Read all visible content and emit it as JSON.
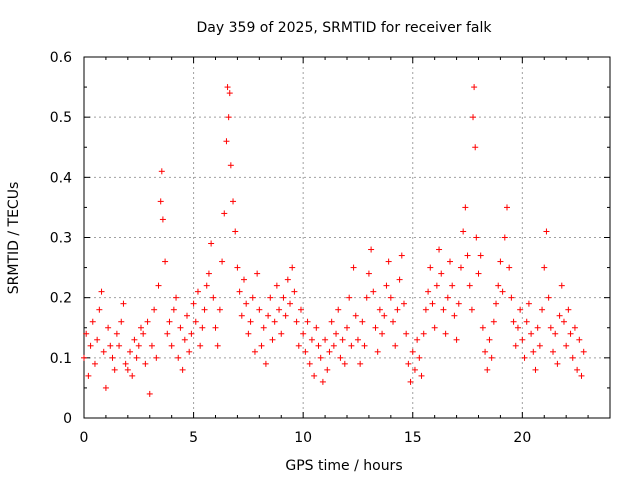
{
  "chart_data": {
    "type": "scatter",
    "title": "Day 359 of 2025, SRMTID for receiver falk",
    "xlabel": "GPS time / hours",
    "ylabel": "SRMTID / TECUs",
    "xlim": [
      0,
      24
    ],
    "ylim": [
      0,
      0.6
    ],
    "xticks": [
      "0",
      "5",
      "10",
      "15",
      "20"
    ],
    "xtick_values": [
      0,
      5,
      10,
      15,
      20
    ],
    "yticks": [
      "0",
      "0.1",
      "0.2",
      "0.3",
      "0.4",
      "0.5",
      "0.6"
    ],
    "ytick_values": [
      0,
      0.1,
      0.2,
      0.3,
      0.4,
      0.5,
      0.6
    ],
    "grid": true,
    "marker": "+",
    "color": "#ff0000",
    "series": [
      {
        "name": "SRMTID",
        "points": [
          [
            0.0,
            0.1
          ],
          [
            0.1,
            0.14
          ],
          [
            0.2,
            0.07
          ],
          [
            0.3,
            0.12
          ],
          [
            0.4,
            0.16
          ],
          [
            0.5,
            0.09
          ],
          [
            0.6,
            0.13
          ],
          [
            0.7,
            0.18
          ],
          [
            0.8,
            0.21
          ],
          [
            0.9,
            0.11
          ],
          [
            1.0,
            0.05
          ],
          [
            1.1,
            0.15
          ],
          [
            1.2,
            0.12
          ],
          [
            1.3,
            0.1
          ],
          [
            1.4,
            0.08
          ],
          [
            1.5,
            0.14
          ],
          [
            1.6,
            0.12
          ],
          [
            1.7,
            0.16
          ],
          [
            1.8,
            0.19
          ],
          [
            1.9,
            0.09
          ],
          [
            2.0,
            0.08
          ],
          [
            2.1,
            0.11
          ],
          [
            2.2,
            0.07
          ],
          [
            2.3,
            0.13
          ],
          [
            2.4,
            0.1
          ],
          [
            2.5,
            0.12
          ],
          [
            2.6,
            0.15
          ],
          [
            2.7,
            0.14
          ],
          [
            2.8,
            0.09
          ],
          [
            2.9,
            0.16
          ],
          [
            3.0,
            0.04
          ],
          [
            3.1,
            0.12
          ],
          [
            3.2,
            0.18
          ],
          [
            3.3,
            0.1
          ],
          [
            3.4,
            0.22
          ],
          [
            3.5,
            0.36
          ],
          [
            3.55,
            0.41
          ],
          [
            3.6,
            0.33
          ],
          [
            3.7,
            0.26
          ],
          [
            3.8,
            0.14
          ],
          [
            3.9,
            0.16
          ],
          [
            4.0,
            0.12
          ],
          [
            4.1,
            0.18
          ],
          [
            4.2,
            0.2
          ],
          [
            4.3,
            0.1
          ],
          [
            4.4,
            0.15
          ],
          [
            4.5,
            0.08
          ],
          [
            4.6,
            0.13
          ],
          [
            4.7,
            0.17
          ],
          [
            4.8,
            0.11
          ],
          [
            4.9,
            0.14
          ],
          [
            5.0,
            0.19
          ],
          [
            5.1,
            0.16
          ],
          [
            5.2,
            0.21
          ],
          [
            5.3,
            0.12
          ],
          [
            5.4,
            0.15
          ],
          [
            5.5,
            0.18
          ],
          [
            5.6,
            0.22
          ],
          [
            5.7,
            0.24
          ],
          [
            5.8,
            0.29
          ],
          [
            5.9,
            0.2
          ],
          [
            6.0,
            0.15
          ],
          [
            6.1,
            0.12
          ],
          [
            6.2,
            0.18
          ],
          [
            6.3,
            0.26
          ],
          [
            6.4,
            0.34
          ],
          [
            6.5,
            0.46
          ],
          [
            6.55,
            0.55
          ],
          [
            6.6,
            0.5
          ],
          [
            6.65,
            0.54
          ],
          [
            6.7,
            0.42
          ],
          [
            6.8,
            0.36
          ],
          [
            6.9,
            0.31
          ],
          [
            7.0,
            0.25
          ],
          [
            7.1,
            0.21
          ],
          [
            7.2,
            0.17
          ],
          [
            7.3,
            0.23
          ],
          [
            7.4,
            0.19
          ],
          [
            7.5,
            0.14
          ],
          [
            7.6,
            0.16
          ],
          [
            7.7,
            0.2
          ],
          [
            7.8,
            0.11
          ],
          [
            7.9,
            0.24
          ],
          [
            8.0,
            0.18
          ],
          [
            8.1,
            0.12
          ],
          [
            8.2,
            0.15
          ],
          [
            8.3,
            0.09
          ],
          [
            8.4,
            0.17
          ],
          [
            8.5,
            0.2
          ],
          [
            8.6,
            0.13
          ],
          [
            8.7,
            0.16
          ],
          [
            8.8,
            0.22
          ],
          [
            8.9,
            0.18
          ],
          [
            9.0,
            0.14
          ],
          [
            9.1,
            0.2
          ],
          [
            9.2,
            0.17
          ],
          [
            9.3,
            0.23
          ],
          [
            9.4,
            0.19
          ],
          [
            9.5,
            0.25
          ],
          [
            9.6,
            0.21
          ],
          [
            9.7,
            0.16
          ],
          [
            9.8,
            0.12
          ],
          [
            9.9,
            0.18
          ],
          [
            10.0,
            0.14
          ],
          [
            10.1,
            0.11
          ],
          [
            10.2,
            0.16
          ],
          [
            10.3,
            0.09
          ],
          [
            10.4,
            0.13
          ],
          [
            10.5,
            0.07
          ],
          [
            10.6,
            0.15
          ],
          [
            10.7,
            0.12
          ],
          [
            10.8,
            0.1
          ],
          [
            10.9,
            0.06
          ],
          [
            11.0,
            0.13
          ],
          [
            11.1,
            0.08
          ],
          [
            11.2,
            0.11
          ],
          [
            11.3,
            0.16
          ],
          [
            11.4,
            0.12
          ],
          [
            11.5,
            0.14
          ],
          [
            11.6,
            0.18
          ],
          [
            11.7,
            0.1
          ],
          [
            11.8,
            0.13
          ],
          [
            11.9,
            0.09
          ],
          [
            12.0,
            0.15
          ],
          [
            12.1,
            0.2
          ],
          [
            12.2,
            0.12
          ],
          [
            12.3,
            0.25
          ],
          [
            12.4,
            0.17
          ],
          [
            12.5,
            0.13
          ],
          [
            12.6,
            0.09
          ],
          [
            12.7,
            0.16
          ],
          [
            12.8,
            0.12
          ],
          [
            12.9,
            0.2
          ],
          [
            13.0,
            0.24
          ],
          [
            13.1,
            0.28
          ],
          [
            13.2,
            0.21
          ],
          [
            13.3,
            0.15
          ],
          [
            13.4,
            0.11
          ],
          [
            13.5,
            0.18
          ],
          [
            13.6,
            0.14
          ],
          [
            13.7,
            0.17
          ],
          [
            13.8,
            0.22
          ],
          [
            13.9,
            0.26
          ],
          [
            14.0,
            0.2
          ],
          [
            14.1,
            0.16
          ],
          [
            14.2,
            0.12
          ],
          [
            14.3,
            0.18
          ],
          [
            14.4,
            0.23
          ],
          [
            14.5,
            0.27
          ],
          [
            14.6,
            0.19
          ],
          [
            14.7,
            0.14
          ],
          [
            14.8,
            0.09
          ],
          [
            14.9,
            0.06
          ],
          [
            15.0,
            0.11
          ],
          [
            15.1,
            0.08
          ],
          [
            15.2,
            0.13
          ],
          [
            15.3,
            0.1
          ],
          [
            15.4,
            0.07
          ],
          [
            15.5,
            0.14
          ],
          [
            15.6,
            0.18
          ],
          [
            15.7,
            0.21
          ],
          [
            15.8,
            0.25
          ],
          [
            15.9,
            0.19
          ],
          [
            16.0,
            0.15
          ],
          [
            16.1,
            0.22
          ],
          [
            16.2,
            0.28
          ],
          [
            16.3,
            0.24
          ],
          [
            16.4,
            0.18
          ],
          [
            16.5,
            0.14
          ],
          [
            16.6,
            0.2
          ],
          [
            16.7,
            0.26
          ],
          [
            16.8,
            0.22
          ],
          [
            16.9,
            0.17
          ],
          [
            17.0,
            0.13
          ],
          [
            17.1,
            0.19
          ],
          [
            17.2,
            0.25
          ],
          [
            17.3,
            0.31
          ],
          [
            17.4,
            0.35
          ],
          [
            17.5,
            0.27
          ],
          [
            17.6,
            0.22
          ],
          [
            17.7,
            0.18
          ],
          [
            17.75,
            0.5
          ],
          [
            17.8,
            0.55
          ],
          [
            17.85,
            0.45
          ],
          [
            17.9,
            0.3
          ],
          [
            18.0,
            0.24
          ],
          [
            18.1,
            0.27
          ],
          [
            18.2,
            0.15
          ],
          [
            18.3,
            0.11
          ],
          [
            18.4,
            0.08
          ],
          [
            18.5,
            0.13
          ],
          [
            18.6,
            0.1
          ],
          [
            18.7,
            0.16
          ],
          [
            18.8,
            0.19
          ],
          [
            18.9,
            0.22
          ],
          [
            19.0,
            0.26
          ],
          [
            19.1,
            0.21
          ],
          [
            19.2,
            0.3
          ],
          [
            19.3,
            0.35
          ],
          [
            19.4,
            0.25
          ],
          [
            19.5,
            0.2
          ],
          [
            19.6,
            0.16
          ],
          [
            19.7,
            0.12
          ],
          [
            19.8,
            0.15
          ],
          [
            19.9,
            0.18
          ],
          [
            20.0,
            0.13
          ],
          [
            20.1,
            0.1
          ],
          [
            20.2,
            0.16
          ],
          [
            20.3,
            0.19
          ],
          [
            20.4,
            0.14
          ],
          [
            20.5,
            0.11
          ],
          [
            20.6,
            0.08
          ],
          [
            20.7,
            0.15
          ],
          [
            20.8,
            0.12
          ],
          [
            20.9,
            0.18
          ],
          [
            21.0,
            0.25
          ],
          [
            21.1,
            0.31
          ],
          [
            21.2,
            0.2
          ],
          [
            21.3,
            0.15
          ],
          [
            21.4,
            0.11
          ],
          [
            21.5,
            0.14
          ],
          [
            21.6,
            0.09
          ],
          [
            21.7,
            0.17
          ],
          [
            21.8,
            0.22
          ],
          [
            21.9,
            0.16
          ],
          [
            22.0,
            0.12
          ],
          [
            22.1,
            0.18
          ],
          [
            22.2,
            0.14
          ],
          [
            22.3,
            0.1
          ],
          [
            22.4,
            0.15
          ],
          [
            22.5,
            0.08
          ],
          [
            22.6,
            0.13
          ],
          [
            22.7,
            0.07
          ],
          [
            22.8,
            0.11
          ]
        ]
      }
    ]
  }
}
